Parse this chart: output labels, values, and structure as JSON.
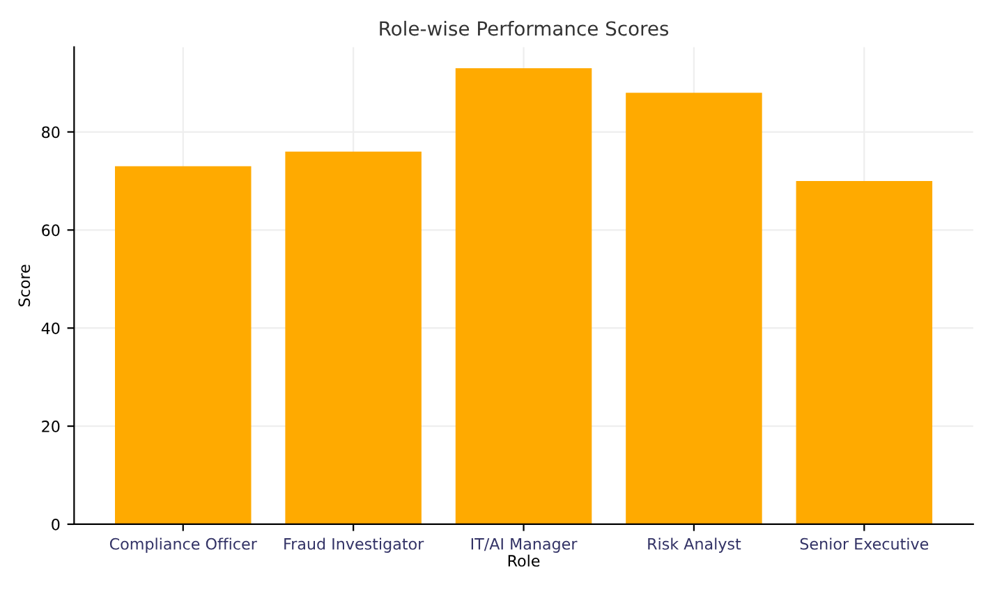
{
  "chart_data": {
    "type": "bar",
    "title": "Role-wise Performance Scores",
    "xlabel": "Role",
    "ylabel": "Score",
    "categories": [
      "Compliance Officer",
      "Fraud Investigator",
      "IT/AI Manager",
      "Risk Analyst",
      "Senior Executive"
    ],
    "values": [
      73,
      76,
      93,
      88,
      70
    ],
    "color": "#ffaa00",
    "ylim": [
      0,
      97.3
    ],
    "yticks": [
      0,
      20,
      40,
      60,
      80
    ],
    "grid": true
  }
}
